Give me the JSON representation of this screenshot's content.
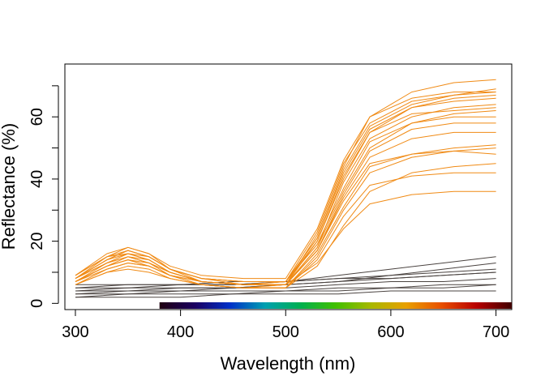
{
  "chart_data": {
    "type": "line",
    "title": "",
    "xlabel": "Wavelength (nm)",
    "ylabel": "Reflectance (%)",
    "xlim": [
      290,
      715
    ],
    "ylim": [
      -2,
      77
    ],
    "x_ticks": [
      300,
      400,
      500,
      600,
      700
    ],
    "x_minor_ticks": [],
    "y_ticks": [
      0,
      20,
      40,
      60
    ],
    "y_minor_ticks": [
      10,
      30,
      50,
      70
    ],
    "grid": false,
    "legend": "none",
    "series_groups": [
      {
        "label": "orange-spectra",
        "color": "#f08a14",
        "curves": [
          {
            "x": [
              300,
              330,
              350,
              370,
              390,
              420,
              460,
              500,
              530,
              555,
              580,
              620,
              660,
              700
            ],
            "y": [
              9,
              15,
              17,
              15,
              11,
              8,
              7,
              7,
              20,
              40,
              55,
              63,
              66,
              67
            ]
          },
          {
            "x": [
              300,
              330,
              350,
              370,
              390,
              420,
              460,
              500,
              530,
              555,
              580,
              620,
              660,
              700
            ],
            "y": [
              8,
              14,
              16,
              14,
              10,
              7,
              6,
              6,
              18,
              36,
              50,
              58,
              61,
              62
            ]
          },
          {
            "x": [
              300,
              330,
              350,
              370,
              390,
              420,
              460,
              500,
              530,
              555,
              580,
              620,
              660,
              700
            ],
            "y": [
              8,
              15,
              18,
              16,
              11,
              7,
              6,
              6,
              22,
              44,
              60,
              68,
              71,
              72
            ]
          },
          {
            "x": [
              300,
              330,
              350,
              370,
              390,
              420,
              460,
              500,
              530,
              555,
              580,
              620,
              660,
              700
            ],
            "y": [
              7,
              12,
              15,
              13,
              9,
              6,
              5,
              5,
              15,
              30,
              42,
              47,
              49,
              50
            ]
          },
          {
            "x": [
              300,
              330,
              350,
              370,
              390,
              420,
              460,
              500,
              530,
              555,
              580,
              620,
              660,
              700
            ],
            "y": [
              6,
              10,
              12,
              11,
              8,
              6,
              5,
              5,
              14,
              28,
              38,
              41,
              42,
              42
            ]
          },
          {
            "x": [
              300,
              330,
              350,
              370,
              390,
              420,
              460,
              500,
              530,
              555,
              580,
              620,
              660,
              700
            ],
            "y": [
              7,
              11,
              13,
              12,
              9,
              7,
              6,
              6,
              13,
              24,
              32,
              35,
              36,
              36
            ]
          },
          {
            "x": [
              300,
              330,
              350,
              370,
              390,
              420,
              460,
              500,
              530,
              555,
              580,
              620,
              660,
              700
            ],
            "y": [
              9,
              16,
              18,
              16,
              12,
              9,
              8,
              8,
              24,
              46,
              60,
              66,
              68,
              68
            ]
          },
          {
            "x": [
              300,
              330,
              350,
              370,
              390,
              420,
              460,
              500,
              530,
              555,
              580,
              620,
              660,
              700
            ],
            "y": [
              8,
              13,
              15,
              14,
              10,
              7,
              6,
              7,
              19,
              37,
              52,
              58,
              60,
              60
            ]
          },
          {
            "x": [
              300,
              330,
              350,
              370,
              390,
              420,
              460,
              500,
              530,
              555,
              580,
              620,
              660,
              700
            ],
            "y": [
              7,
              12,
              14,
              13,
              10,
              7,
              6,
              6,
              17,
              34,
              47,
              53,
              55,
              55
            ]
          },
          {
            "x": [
              300,
              330,
              350,
              370,
              390,
              420,
              460,
              500,
              530,
              555,
              580,
              620,
              660,
              700
            ],
            "y": [
              8,
              14,
              17,
              15,
              11,
              8,
              7,
              7,
              21,
              42,
              56,
              63,
              65,
              66
            ]
          },
          {
            "x": [
              300,
              330,
              350,
              370,
              390,
              420,
              460,
              500,
              530,
              555,
              580,
              620,
              660,
              700
            ],
            "y": [
              6,
              11,
              13,
              12,
              9,
              6,
              5,
              5,
              16,
              31,
              44,
              48,
              50,
              51
            ]
          },
          {
            "x": [
              300,
              330,
              350,
              370,
              390,
              420,
              460,
              500,
              530,
              555,
              580,
              620,
              660,
              700
            ],
            "y": [
              7,
              13,
              16,
              14,
              10,
              7,
              6,
              6,
              18,
              39,
              53,
              60,
              63,
              64
            ]
          },
          {
            "x": [
              300,
              330,
              350,
              370,
              390,
              420,
              460,
              500,
              530,
              555,
              580,
              620,
              660,
              700
            ],
            "y": [
              8,
              13,
              15,
              13,
              10,
              7,
              6,
              6,
              17,
              33,
              45,
              48,
              49,
              48
            ]
          },
          {
            "x": [
              300,
              330,
              350,
              370,
              390,
              420,
              460,
              500,
              530,
              555,
              580,
              620,
              660,
              700
            ],
            "y": [
              9,
              15,
              16,
              15,
              11,
              8,
              7,
              7,
              23,
              45,
              58,
              65,
              67,
              68
            ]
          },
          {
            "x": [
              300,
              330,
              350,
              370,
              390,
              420,
              460,
              500,
              530,
              555,
              580,
              620,
              660,
              700
            ],
            "y": [
              7,
              12,
              14,
              12,
              9,
              6,
              5,
              6,
              20,
              41,
              55,
              61,
              62,
              63
            ]
          },
          {
            "x": [
              300,
              330,
              350,
              370,
              390,
              420,
              460,
              500,
              530,
              555,
              580,
              620,
              660,
              700
            ],
            "y": [
              6,
              10,
              11,
              10,
              8,
              6,
              5,
              5,
              12,
              25,
              36,
              42,
              44,
              45
            ]
          },
          {
            "x": [
              300,
              330,
              350,
              370,
              390,
              420,
              460,
              500,
              530,
              555,
              580,
              620,
              660,
              700
            ],
            "y": [
              8,
              14,
              17,
              15,
              11,
              8,
              6,
              7,
              21,
              43,
              57,
              64,
              67,
              69
            ]
          },
          {
            "x": [
              300,
              330,
              350,
              370,
              390,
              420,
              460,
              500,
              530,
              555,
              580,
              620,
              660,
              700
            ],
            "y": [
              7,
              12,
              14,
              12,
              9,
              7,
              6,
              6,
              17,
              35,
              49,
              56,
              58,
              58
            ]
          }
        ]
      },
      {
        "label": "dark-spectra",
        "color": "#4a4340",
        "curves": [
          {
            "x": [
              300,
              350,
              400,
              450,
              500,
              550,
              600,
              650,
              700
            ],
            "y": [
              2,
              2,
              2,
              3,
              3,
              3,
              4,
              4,
              4
            ]
          },
          {
            "x": [
              300,
              350,
              400,
              450,
              500,
              550,
              600,
              650,
              700
            ],
            "y": [
              3,
              3,
              4,
              4,
              4,
              5,
              5,
              6,
              6
            ]
          },
          {
            "x": [
              300,
              350,
              400,
              450,
              500,
              550,
              600,
              650,
              700
            ],
            "y": [
              4,
              4,
              5,
              5,
              5,
              6,
              7,
              7,
              8
            ]
          },
          {
            "x": [
              300,
              350,
              400,
              450,
              500,
              550,
              600,
              650,
              700
            ],
            "y": [
              5,
              6,
              6,
              6,
              7,
              8,
              8,
              9,
              10
            ]
          },
          {
            "x": [
              300,
              350,
              400,
              450,
              500,
              550,
              600,
              650,
              700
            ],
            "y": [
              6,
              6,
              6,
              7,
              7,
              8,
              9,
              10,
              11
            ]
          },
          {
            "x": [
              300,
              350,
              400,
              450,
              500,
              550,
              600,
              650,
              700
            ],
            "y": [
              4,
              5,
              5,
              5,
              6,
              7,
              8,
              9,
              10
            ]
          },
          {
            "x": [
              300,
              350,
              400,
              450,
              500,
              550,
              600,
              650,
              700
            ],
            "y": [
              3,
              4,
              4,
              5,
              6,
              7,
              9,
              11,
              13
            ]
          },
          {
            "x": [
              300,
              350,
              400,
              450,
              500,
              550,
              600,
              650,
              700
            ],
            "y": [
              5,
              5,
              6,
              6,
              7,
              9,
              11,
              13,
              15
            ]
          },
          {
            "x": [
              300,
              350,
              400,
              450,
              500,
              550,
              600,
              650,
              700
            ],
            "y": [
              2,
              3,
              3,
              3,
              4,
              4,
              5,
              5,
              6
            ]
          }
        ]
      }
    ],
    "colorbar": {
      "x_range": [
        380,
        715
      ],
      "colors": [
        "#1f0010",
        "#1b0060",
        "#0030c8",
        "#00a0b0",
        "#00b050",
        "#40c000",
        "#a8b800",
        "#e8a000",
        "#e85000",
        "#b80000",
        "#400000"
      ]
    }
  }
}
